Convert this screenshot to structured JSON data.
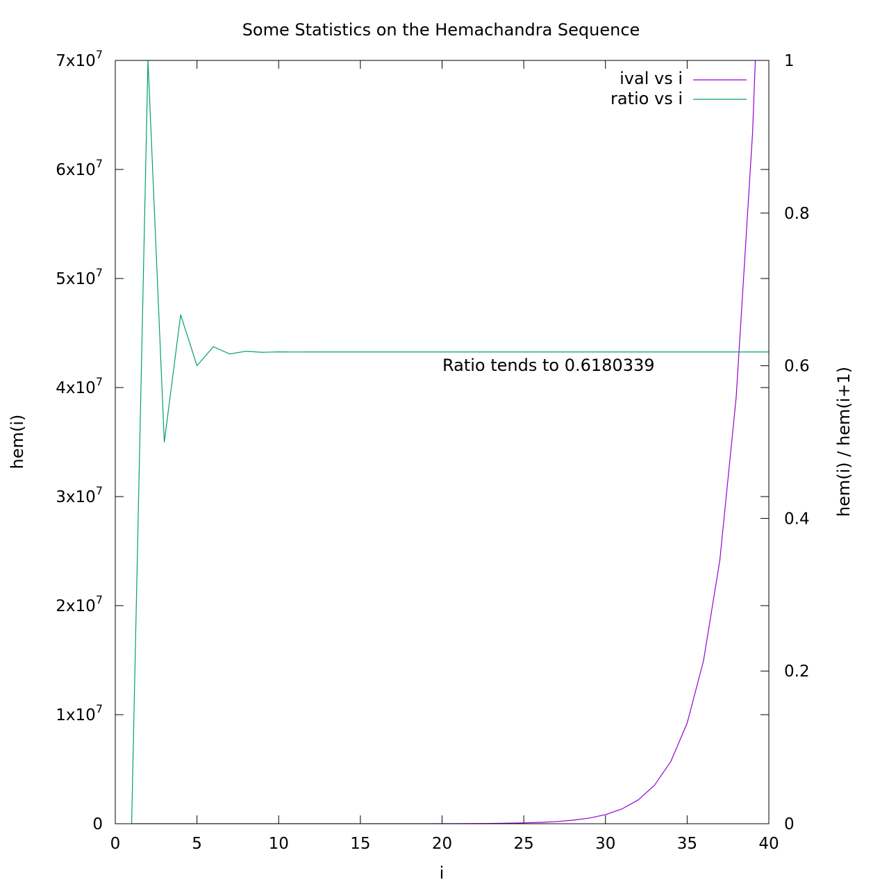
{
  "chart_data": {
    "type": "line",
    "title": "Some Statistics on the Hemachandra Sequence",
    "xlabel": "i",
    "ylabel": "hem(i)",
    "y2label": "hem(i) / hem(i+1)",
    "xlim": [
      0,
      40
    ],
    "ylim": [
      0,
      70000000
    ],
    "y2lim": [
      0,
      1
    ],
    "x_ticks": [
      "0",
      "5",
      "10",
      "15",
      "20",
      "25",
      "30",
      "35",
      "40"
    ],
    "y_ticks": [
      {
        "value": 0,
        "base": "0",
        "exp": ""
      },
      {
        "value": 10000000,
        "base": "1x10",
        "exp": "7"
      },
      {
        "value": 20000000,
        "base": "2x10",
        "exp": "7"
      },
      {
        "value": 30000000,
        "base": "3x10",
        "exp": "7"
      },
      {
        "value": 40000000,
        "base": "4x10",
        "exp": "7"
      },
      {
        "value": 50000000,
        "base": "5x10",
        "exp": "7"
      },
      {
        "value": 60000000,
        "base": "6x10",
        "exp": "7"
      },
      {
        "value": 70000000,
        "base": "7x10",
        "exp": "7"
      }
    ],
    "y2_ticks": [
      "0",
      "0.2",
      "0.4",
      "0.6",
      "0.8",
      "1"
    ],
    "grid": false,
    "legend_position": "top-right",
    "annotation": "Ratio tends to 0.6180339",
    "series": [
      {
        "name": "ival vs i",
        "axis": "y",
        "color": "#9400d3",
        "x": [
          1,
          2,
          3,
          4,
          5,
          6,
          7,
          8,
          9,
          10,
          11,
          12,
          13,
          14,
          15,
          16,
          17,
          18,
          19,
          20,
          21,
          22,
          23,
          24,
          25,
          26,
          27,
          28,
          29,
          30,
          31,
          32,
          33,
          34,
          35,
          36,
          37,
          38,
          39,
          40
        ],
        "y": [
          1,
          1,
          2,
          3,
          5,
          8,
          13,
          21,
          34,
          55,
          89,
          144,
          233,
          377,
          610,
          987,
          1597,
          2584,
          4181,
          6765,
          10946,
          17711,
          28657,
          46368,
          75025,
          121393,
          196418,
          317811,
          514229,
          832040,
          1346269,
          2178309,
          3524578,
          5702887,
          9227465,
          14930352,
          24157817,
          39088169,
          63245986,
          102334155
        ]
      },
      {
        "name": "ratio vs i",
        "axis": "y2",
        "color": "#009e73",
        "x": [
          1,
          2,
          3,
          4,
          5,
          6,
          7,
          8,
          9,
          10,
          11,
          12,
          13,
          14,
          15,
          16,
          17,
          18,
          19,
          20,
          21,
          22,
          23,
          24,
          25,
          26,
          27,
          28,
          29,
          30,
          31,
          32,
          33,
          34,
          35,
          36,
          37,
          38,
          39,
          40
        ],
        "y": [
          0,
          1,
          0.5,
          0.6667,
          0.6,
          0.625,
          0.6154,
          0.619,
          0.6176,
          0.6182,
          0.618,
          0.618034,
          0.618034,
          0.618034,
          0.618034,
          0.618034,
          0.618034,
          0.618034,
          0.618034,
          0.618034,
          0.618034,
          0.618034,
          0.618034,
          0.618034,
          0.618034,
          0.618034,
          0.618034,
          0.618034,
          0.618034,
          0.618034,
          0.618034,
          0.618034,
          0.618034,
          0.618034,
          0.618034,
          0.618034,
          0.618034,
          0.618034,
          0.618034,
          0.618034
        ]
      }
    ]
  }
}
